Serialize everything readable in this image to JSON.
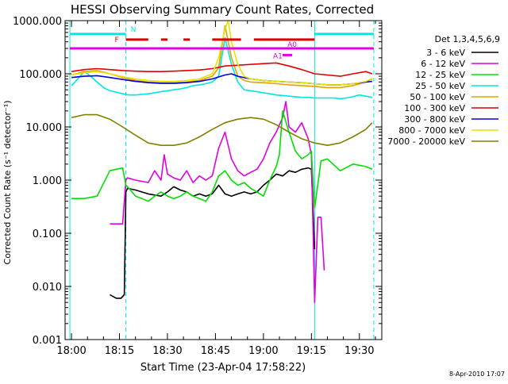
{
  "chart_data": {
    "type": "line",
    "title": "HESSI Observing Summary Count Rates, Corrected",
    "xlabel": "Start Time (23-Apr-04 17:58:22)",
    "ylabel": "Corrected Count Rate (s⁻¹ detector⁻¹)",
    "yscale": "log",
    "ylim": [
      0.001,
      1000
    ],
    "xlim_minutes_after_1800": [
      -2,
      97
    ],
    "x_tick_labels": [
      "18:00",
      "18:15",
      "18:30",
      "18:45",
      "19:00",
      "19:15",
      "19:30"
    ],
    "x_tick_minutes": [
      0,
      15,
      30,
      45,
      60,
      75,
      90
    ],
    "y_tick_labels": [
      "0.001",
      "0.010",
      "0.100",
      "1.000",
      "10.000",
      "100.000",
      "1000.000"
    ],
    "y_tick_values": [
      0.001,
      0.01,
      0.1,
      1,
      10,
      100,
      1000
    ],
    "legend_title": "Det 1,3,4,5,6,9",
    "legend_position": "right",
    "footer": "8-Apr-2010 17:07",
    "flag_labels": {
      "night": "N",
      "flare": "F",
      "attenuator": "A1",
      "attenuator2": "A0"
    },
    "vertical_markers": [
      {
        "minutes": -0.5,
        "style": "solid",
        "color": "#00e5e5"
      },
      {
        "minutes": 17,
        "style": "dashed",
        "color": "#00e5e5"
      },
      {
        "minutes": 76,
        "style": "solid",
        "color": "#00e5e5"
      },
      {
        "minutes": 94.5,
        "style": "dashed",
        "color": "#00e5e5"
      }
    ],
    "flag_bars": [
      {
        "name": "night",
        "color": "#00e5e5",
        "segments": [
          [
            -0.5,
            17
          ],
          [
            76,
            94.5
          ]
        ],
        "level": 560
      },
      {
        "name": "flare",
        "color": "#e00000",
        "segments": [
          [
            17,
            24
          ],
          [
            28,
            30
          ],
          [
            35,
            37
          ],
          [
            44,
            53
          ],
          [
            57,
            76
          ]
        ],
        "level": 440
      },
      {
        "name": "saa",
        "color": "#e000e0",
        "segments": [
          [
            -0.5,
            94.5
          ]
        ],
        "level": 300
      },
      {
        "name": "attenuator",
        "color": "#e000e0",
        "segments": [
          [
            66,
            69
          ]
        ],
        "level": 225
      }
    ],
    "series": [
      {
        "name": "3 - 6 keV",
        "color": "#000000",
        "x": [
          12,
          14,
          15.5,
          16.5,
          17,
          17.5,
          20,
          24,
          28,
          30,
          32,
          34,
          36,
          38,
          40,
          42,
          44,
          46,
          48,
          50,
          52,
          54,
          56,
          58,
          60,
          62,
          64,
          66,
          68,
          70,
          72,
          74,
          75,
          76
        ],
        "y": [
          0.007,
          0.006,
          0.006,
          0.007,
          0.6,
          0.7,
          0.65,
          0.55,
          0.5,
          0.6,
          0.75,
          0.65,
          0.6,
          0.5,
          0.55,
          0.5,
          0.55,
          0.8,
          0.55,
          0.5,
          0.55,
          0.6,
          0.55,
          0.6,
          0.8,
          1.0,
          1.3,
          1.2,
          1.5,
          1.4,
          1.6,
          1.7,
          1.6,
          0.05
        ]
      },
      {
        "name": "6 - 12 keV",
        "color": "#e000e0",
        "x": [
          12,
          14,
          16,
          17,
          17.5,
          20,
          24,
          26,
          28,
          29,
          30,
          32,
          34,
          36,
          38,
          40,
          42,
          44,
          46,
          48,
          50,
          52,
          54,
          56,
          58,
          60,
          62,
          64,
          66,
          67,
          68,
          70,
          72,
          74,
          75,
          76,
          77,
          78,
          79
        ],
        "y": [
          0.15,
          0.15,
          0.15,
          1.0,
          1.1,
          1.0,
          0.9,
          1.5,
          1.0,
          3.0,
          1.3,
          1.1,
          1.0,
          1.5,
          0.9,
          1.2,
          1.0,
          1.2,
          4.0,
          8.0,
          2.5,
          1.5,
          1.2,
          1.4,
          1.6,
          2.5,
          5.0,
          8.0,
          15,
          30,
          10,
          8,
          12,
          6,
          3,
          0.005,
          0.2,
          0.2,
          0.02
        ]
      },
      {
        "name": "12 - 25 keV",
        "color": "#00e000",
        "x": [
          0,
          4,
          8,
          12,
          14,
          16,
          17,
          18,
          20,
          22,
          24,
          26,
          28,
          30,
          32,
          34,
          36,
          38,
          40,
          42,
          44,
          46,
          48,
          50,
          52,
          54,
          56,
          58,
          60,
          62,
          64,
          65,
          66,
          68,
          70,
          72,
          74,
          75,
          76,
          78,
          80,
          84,
          88,
          92,
          94
        ],
        "y": [
          0.45,
          0.45,
          0.5,
          1.5,
          1.6,
          1.7,
          0.8,
          0.7,
          0.5,
          0.45,
          0.4,
          0.5,
          0.6,
          0.5,
          0.45,
          0.5,
          0.6,
          0.5,
          0.45,
          0.4,
          0.6,
          1.2,
          1.5,
          1.0,
          0.8,
          0.9,
          0.7,
          0.6,
          0.5,
          1.0,
          1.8,
          3.0,
          20,
          8,
          3.5,
          2.5,
          3.0,
          3.5,
          0.3,
          2.3,
          2.5,
          1.5,
          2.0,
          1.8,
          1.6
        ]
      },
      {
        "name": "25 - 50 keV",
        "color": "#00e5e5",
        "x": [
          0,
          2,
          4,
          6,
          8,
          10,
          12,
          14,
          16,
          18,
          20,
          22,
          24,
          26,
          28,
          30,
          32,
          34,
          36,
          38,
          40,
          42,
          44,
          46,
          48,
          50,
          52,
          54,
          56,
          58,
          60,
          62,
          64,
          66,
          68,
          70,
          72,
          74,
          76,
          78,
          80,
          82,
          84,
          86,
          88,
          90,
          92,
          94
        ],
        "y": [
          60,
          80,
          110,
          90,
          70,
          55,
          48,
          45,
          42,
          40,
          40,
          41,
          42,
          44,
          46,
          48,
          50,
          52,
          55,
          60,
          62,
          65,
          70,
          90,
          480,
          150,
          70,
          50,
          48,
          46,
          44,
          42,
          40,
          39,
          38,
          37,
          36,
          36,
          35,
          35,
          35,
          35,
          34,
          35,
          37,
          40,
          38,
          36
        ]
      },
      {
        "name": "50 - 100 keV",
        "color": "#e5a000",
        "x": [
          0,
          4,
          8,
          12,
          16,
          20,
          24,
          28,
          32,
          36,
          40,
          44,
          46,
          48,
          50,
          52,
          54,
          56,
          60,
          64,
          68,
          72,
          76,
          80,
          84,
          88,
          92,
          94
        ],
        "y": [
          95,
          110,
          115,
          100,
          85,
          75,
          70,
          68,
          68,
          70,
          75,
          90,
          130,
          800,
          200,
          90,
          75,
          70,
          68,
          65,
          62,
          60,
          58,
          55,
          55,
          60,
          70,
          80
        ]
      },
      {
        "name": "100 - 300 keV",
        "color": "#e00000",
        "x": [
          0,
          4,
          8,
          12,
          16,
          20,
          24,
          28,
          32,
          36,
          40,
          44,
          48,
          52,
          56,
          60,
          64,
          68,
          72,
          76,
          80,
          84,
          88,
          92,
          94
        ],
        "y": [
          110,
          120,
          125,
          120,
          115,
          112,
          110,
          110,
          112,
          115,
          118,
          125,
          140,
          145,
          150,
          155,
          160,
          140,
          120,
          100,
          95,
          90,
          100,
          110,
          100
        ]
      },
      {
        "name": "300 - 800 keV",
        "color": "#0000e0",
        "x": [
          0,
          4,
          8,
          12,
          16,
          20,
          24,
          28,
          32,
          36,
          40,
          44,
          48,
          50,
          52,
          56,
          60,
          64,
          68,
          72,
          76,
          80,
          84,
          88,
          92,
          94
        ],
        "y": [
          85,
          90,
          92,
          85,
          78,
          72,
          68,
          66,
          66,
          68,
          72,
          80,
          95,
          100,
          90,
          80,
          75,
          72,
          70,
          68,
          65,
          62,
          62,
          65,
          70,
          72
        ]
      },
      {
        "name": "800 - 7000 keV",
        "color": "#e5e500",
        "x": [
          0,
          4,
          8,
          12,
          16,
          20,
          24,
          28,
          32,
          36,
          40,
          44,
          46,
          48,
          49,
          50,
          52,
          54,
          56,
          60,
          64,
          68,
          72,
          76,
          80,
          84,
          88,
          92,
          94
        ],
        "y": [
          95,
          105,
          110,
          100,
          88,
          80,
          75,
          72,
          72,
          75,
          80,
          100,
          200,
          700,
          1000,
          400,
          150,
          90,
          80,
          75,
          72,
          70,
          68,
          65,
          62,
          62,
          65,
          72,
          82
        ]
      },
      {
        "name": "7000 - 20000 keV",
        "color": "#808000",
        "x": [
          0,
          4,
          8,
          12,
          16,
          20,
          24,
          28,
          32,
          36,
          40,
          44,
          48,
          52,
          56,
          60,
          64,
          68,
          72,
          76,
          80,
          84,
          88,
          92,
          94
        ],
        "y": [
          15,
          17,
          17,
          14,
          10,
          7,
          5,
          4.5,
          4.5,
          5,
          6.5,
          9,
          12,
          14,
          15,
          14,
          11,
          8,
          6,
          5,
          4.5,
          5,
          6.5,
          9,
          12
        ]
      }
    ]
  }
}
